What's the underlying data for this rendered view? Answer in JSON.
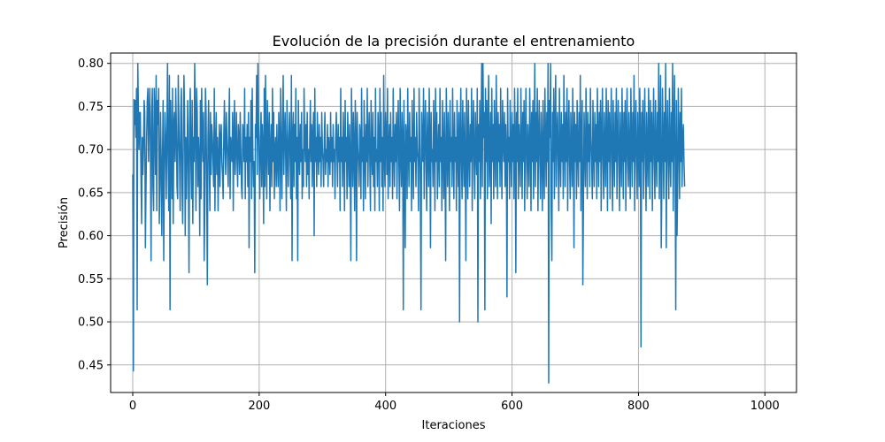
{
  "chart_data": {
    "type": "line",
    "title": "Evolución de la precisión durante el entrenamiento",
    "xlabel": "Iteraciones",
    "ylabel": "Precisión",
    "xlim": [
      -35,
      1050
    ],
    "ylim": [
      0.418,
      0.812
    ],
    "xticks": [
      0,
      200,
      400,
      600,
      800,
      1000
    ],
    "yticks": [
      0.45,
      0.5,
      0.55,
      0.6,
      0.65,
      0.7,
      0.75,
      0.8
    ],
    "grid": true,
    "legend": "none",
    "series_color": "#1f77b4",
    "series": [
      {
        "name": "",
        "x_start": 0,
        "x_step": 1,
        "values": [
          0.671,
          0.443,
          0.758,
          0.729,
          0.757,
          0.714,
          0.771,
          0.514,
          0.8,
          0.743,
          0.7,
          0.743,
          0.743,
          0.671,
          0.614,
          0.714,
          0.671,
          0.7,
          0.757,
          0.743,
          0.586,
          0.657,
          0.714,
          0.757,
          0.771,
          0.686,
          0.743,
          0.771,
          0.7,
          0.571,
          0.743,
          0.771,
          0.657,
          0.629,
          0.771,
          0.743,
          0.671,
          0.786,
          0.629,
          0.757,
          0.729,
          0.771,
          0.614,
          0.657,
          0.743,
          0.686,
          0.6,
          0.686,
          0.757,
          0.571,
          0.671,
          0.743,
          0.714,
          0.643,
          0.714,
          0.8,
          0.686,
          0.629,
          0.786,
          0.514,
          0.757,
          0.714,
          0.643,
          0.771,
          0.614,
          0.729,
          0.743,
          0.686,
          0.771,
          0.729,
          0.657,
          0.643,
          0.786,
          0.729,
          0.686,
          0.629,
          0.743,
          0.771,
          0.657,
          0.614,
          0.714,
          0.786,
          0.743,
          0.6,
          0.714,
          0.643,
          0.7,
          0.757,
          0.671,
          0.557,
          0.729,
          0.771,
          0.686,
          0.643,
          0.757,
          0.614,
          0.714,
          0.686,
          0.8,
          0.729,
          0.629,
          0.771,
          0.743,
          0.657,
          0.714,
          0.686,
          0.6,
          0.757,
          0.643,
          0.771,
          0.714,
          0.686,
          0.743,
          0.571,
          0.629,
          0.771,
          0.743,
          0.657,
          0.543,
          0.714,
          0.757,
          0.686,
          0.629,
          0.743,
          0.671,
          0.729,
          0.714,
          0.686,
          0.657,
          0.771,
          0.629,
          0.7,
          0.743,
          0.671,
          0.714,
          0.629,
          0.686,
          0.729,
          0.657,
          0.714,
          0.729,
          0.686,
          0.671,
          0.643,
          0.714,
          0.757,
          0.7,
          0.671,
          0.743,
          0.714,
          0.686,
          0.657,
          0.729,
          0.771,
          0.643,
          0.714,
          0.7,
          0.686,
          0.743,
          0.629,
          0.714,
          0.757,
          0.671,
          0.7,
          0.743,
          0.686,
          0.657,
          0.729,
          0.714,
          0.671,
          0.743,
          0.7,
          0.657,
          0.643,
          0.729,
          0.714,
          0.686,
          0.771,
          0.643,
          0.714,
          0.686,
          0.729,
          0.657,
          0.743,
          0.586,
          0.714,
          0.686,
          0.757,
          0.643,
          0.771,
          0.7,
          0.657,
          0.686,
          0.557,
          0.729,
          0.714,
          0.786,
          0.671,
          0.8,
          0.729,
          0.686,
          0.643,
          0.714,
          0.743,
          0.657,
          0.729,
          0.7,
          0.614,
          0.771,
          0.657,
          0.786,
          0.7,
          0.643,
          0.757,
          0.714,
          0.671,
          0.743,
          0.629,
          0.7,
          0.729,
          0.657,
          0.771,
          0.686,
          0.743,
          0.643,
          0.7,
          0.714,
          0.657,
          0.729,
          0.686,
          0.657,
          0.743,
          0.714,
          0.629,
          0.771,
          0.7,
          0.643,
          0.729,
          0.786,
          0.671,
          0.714,
          0.743,
          0.686,
          0.629,
          0.757,
          0.7,
          0.657,
          0.714,
          0.743,
          0.686,
          0.643,
          0.786,
          0.571,
          0.714,
          0.743,
          0.657,
          0.729,
          0.686,
          0.771,
          0.643,
          0.714,
          0.571,
          0.757,
          0.7,
          0.671,
          0.729,
          0.686,
          0.743,
          0.643,
          0.7,
          0.657,
          0.771,
          0.714,
          0.686,
          0.729,
          0.657,
          0.743,
          0.671,
          0.7,
          0.643,
          0.714,
          0.757,
          0.686,
          0.729,
          0.657,
          0.714,
          0.743,
          0.6,
          0.771,
          0.686,
          0.714,
          0.657,
          0.743,
          0.7,
          0.671,
          0.729,
          0.686,
          0.714,
          0.657,
          0.743,
          0.7,
          0.686,
          0.657,
          0.714,
          0.743,
          0.671,
          0.7,
          0.686,
          0.729,
          0.657,
          0.714,
          0.7,
          0.671,
          0.743,
          0.686,
          0.714,
          0.657,
          0.729,
          0.686,
          0.7,
          0.643,
          0.714,
          0.743,
          0.7,
          0.657,
          0.729,
          0.686,
          0.714,
          0.629,
          0.771,
          0.686,
          0.714,
          0.657,
          0.743,
          0.7,
          0.629,
          0.757,
          0.686,
          0.714,
          0.643,
          0.743,
          0.7,
          0.657,
          0.729,
          0.686,
          0.571,
          0.771,
          0.714,
          0.657,
          0.743,
          0.7,
          0.629,
          0.757,
          0.714,
          0.571,
          0.743,
          0.7,
          0.686,
          0.657,
          0.729,
          0.714,
          0.643,
          0.771,
          0.686,
          0.714,
          0.629,
          0.757,
          0.7,
          0.643,
          0.729,
          0.686,
          0.771,
          0.657,
          0.714,
          0.743,
          0.686,
          0.629,
          0.757,
          0.7,
          0.671,
          0.743,
          0.657,
          0.714,
          0.629,
          0.771,
          0.686,
          0.7,
          0.657,
          0.743,
          0.714,
          0.629,
          0.771,
          0.686,
          0.743,
          0.657,
          0.714,
          0.629,
          0.786,
          0.7,
          0.657,
          0.743,
          0.714,
          0.671,
          0.771,
          0.643,
          0.7,
          0.729,
          0.657,
          0.743,
          0.686,
          0.714,
          0.643,
          0.771,
          0.7,
          0.657,
          0.729,
          0.686,
          0.743,
          0.643,
          0.714,
          0.757,
          0.686,
          0.629,
          0.771,
          0.7,
          0.657,
          0.743,
          0.714,
          0.514,
          0.757,
          0.686,
          0.586,
          0.729,
          0.714,
          0.643,
          0.771,
          0.7,
          0.657,
          0.743,
          0.686,
          0.714,
          0.629,
          0.757,
          0.7,
          0.643,
          0.771,
          0.686,
          0.714,
          0.657,
          0.743,
          0.7,
          0.686,
          0.629,
          0.771,
          0.714,
          0.657,
          0.514,
          0.743,
          0.7,
          0.686,
          0.771,
          0.643,
          0.714,
          0.757,
          0.686,
          0.629,
          0.743,
          0.7,
          0.657,
          0.771,
          0.714,
          0.586,
          0.743,
          0.686,
          0.7,
          0.657,
          0.757,
          0.714,
          0.629,
          0.771,
          0.686,
          0.743,
          0.643,
          0.7,
          0.729,
          0.657,
          0.771,
          0.686,
          0.714,
          0.629,
          0.757,
          0.7,
          0.643,
          0.743,
          0.686,
          0.571,
          0.771,
          0.714,
          0.657,
          0.743,
          0.7,
          0.629,
          0.757,
          0.686,
          0.714,
          0.657,
          0.771,
          0.7,
          0.643,
          0.743,
          0.686,
          0.714,
          0.629,
          0.757,
          0.7,
          0.657,
          0.743,
          0.5,
          0.714,
          0.771,
          0.686,
          0.643,
          0.757,
          0.7,
          0.657,
          0.743,
          0.686,
          0.571,
          0.771,
          0.714,
          0.643,
          0.757,
          0.7,
          0.657,
          0.729,
          0.686,
          0.771,
          0.629,
          0.714,
          0.757,
          0.686,
          0.643,
          0.743,
          0.7,
          0.671,
          0.771,
          0.5,
          0.729,
          0.686,
          0.757,
          0.643,
          0.714,
          0.8,
          0.657,
          0.8,
          0.714,
          0.743,
          0.514,
          0.771,
          0.686,
          0.757,
          0.643,
          0.729,
          0.786,
          0.657,
          0.7,
          0.743,
          0.614,
          0.771,
          0.686,
          0.729,
          0.643,
          0.757,
          0.7,
          0.657,
          0.786,
          0.714,
          0.643,
          0.743,
          0.686,
          0.729,
          0.657,
          0.771,
          0.7,
          0.643,
          0.757,
          0.714,
          0.686,
          0.743,
          0.657,
          0.729,
          0.7,
          0.529,
          0.771,
          0.686,
          0.714,
          0.643,
          0.757,
          0.7,
          0.657,
          0.743,
          0.686,
          0.729,
          0.643,
          0.771,
          0.714,
          0.557,
          0.743,
          0.686,
          0.771,
          0.643,
          0.729,
          0.7,
          0.657,
          0.771,
          0.714,
          0.643,
          0.743,
          0.686,
          0.757,
          0.629,
          0.714,
          0.771,
          0.686,
          0.643,
          0.729,
          0.7,
          0.657,
          0.771,
          0.714,
          0.629,
          0.743,
          0.686,
          0.757,
          0.643,
          0.714,
          0.8,
          0.657,
          0.743,
          0.686,
          0.771,
          0.629,
          0.714,
          0.757,
          0.686,
          0.643,
          0.743,
          0.7,
          0.629,
          0.757,
          0.686,
          0.643,
          0.771,
          0.714,
          0.657,
          0.743,
          0.686,
          0.8,
          0.429,
          0.757,
          0.714,
          0.8,
          0.629,
          0.571,
          0.743,
          0.686,
          0.771,
          0.643,
          0.729,
          0.786,
          0.657,
          0.714,
          0.743,
          0.686,
          0.629,
          0.771,
          0.7,
          0.657,
          0.743,
          0.686,
          0.729,
          0.643,
          0.786,
          0.714,
          0.657,
          0.743,
          0.686,
          0.771,
          0.629,
          0.714,
          0.757,
          0.686,
          0.643,
          0.743,
          0.7,
          0.657,
          0.771,
          0.714,
          0.586,
          0.743,
          0.686,
          0.729,
          0.643,
          0.757,
          0.7,
          0.657,
          0.743,
          0.686,
          0.786,
          0.629,
          0.714,
          0.757,
          0.543,
          0.643,
          0.743,
          0.7,
          0.657,
          0.771,
          0.714,
          0.643,
          0.743,
          0.686,
          0.729,
          0.657,
          0.771,
          0.714,
          0.686,
          0.643,
          0.757,
          0.7,
          0.657,
          0.743,
          0.686,
          0.729,
          0.643,
          0.771,
          0.714,
          0.657,
          0.743,
          0.686,
          0.757,
          0.629,
          0.714,
          0.771,
          0.686,
          0.643,
          0.743,
          0.7,
          0.657,
          0.771,
          0.714,
          0.629,
          0.757,
          0.686,
          0.743,
          0.643,
          0.714,
          0.771,
          0.686,
          0.629,
          0.757,
          0.7,
          0.657,
          0.743,
          0.686,
          0.771,
          0.643,
          0.714,
          0.757,
          0.686,
          0.629,
          0.743,
          0.7,
          0.657,
          0.771,
          0.714,
          0.643,
          0.743,
          0.686,
          0.757,
          0.629,
          0.714,
          0.771,
          0.686,
          0.657,
          0.743,
          0.7,
          0.643,
          0.771,
          0.714,
          0.657,
          0.743,
          0.686,
          0.786,
          0.629,
          0.714,
          0.757,
          0.686,
          0.643,
          0.743,
          0.7,
          0.657,
          0.771,
          0.714,
          0.471,
          0.743,
          0.686,
          0.757,
          0.643,
          0.714,
          0.771,
          0.686,
          0.629,
          0.743,
          0.7,
          0.657,
          0.771,
          0.714,
          0.643,
          0.757,
          0.686,
          0.743,
          0.629,
          0.714,
          0.771,
          0.686,
          0.643,
          0.757,
          0.7,
          0.657,
          0.743,
          0.686,
          0.8,
          0.643,
          0.714,
          0.786,
          0.586,
          0.657,
          0.771,
          0.714,
          0.643,
          0.743,
          0.686,
          0.8,
          0.586,
          0.714,
          0.757,
          0.686,
          0.643,
          0.771,
          0.7,
          0.657,
          0.743,
          0.686,
          0.8,
          0.629,
          0.714,
          0.786,
          0.686,
          0.514,
          0.757,
          0.6,
          0.657,
          0.771,
          0.714,
          0.643,
          0.743,
          0.686,
          0.771,
          0.657,
          0.714,
          0.729,
          0.686,
          0.657
        ]
      }
    ]
  }
}
